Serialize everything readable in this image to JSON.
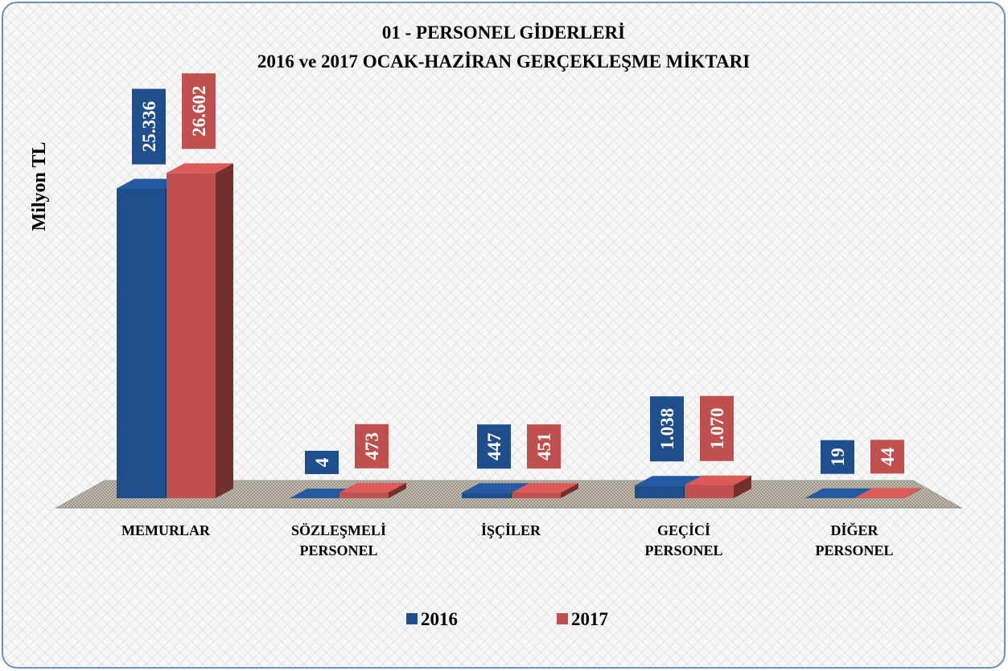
{
  "chart_data": {
    "type": "bar3d",
    "title": "01 - PERSONEL GİDERLERİ",
    "subtitle": "2016 ve 2017 OCAK-HAZİRAN GERÇEKLEŞME MİKTARI",
    "ylabel": "Milyon TL",
    "categories": [
      "MEMURLAR",
      "SÖZLEŞMELİ PERSONEL",
      "İŞÇİLER",
      "GEÇİCİ PERSONEL",
      "DİĞER PERSONEL"
    ],
    "series": [
      {
        "name": "2016",
        "color": "#1f4e8c",
        "values": [
          25336,
          4,
          447,
          1038,
          19
        ],
        "value_labels": [
          "25.336",
          "4",
          "447",
          "1.038",
          "19"
        ]
      },
      {
        "name": "2017",
        "color": "#c0504d",
        "values": [
          26602,
          473,
          451,
          1070,
          44
        ],
        "value_labels": [
          "26.602",
          "473",
          "451",
          "1.070",
          "44"
        ]
      }
    ],
    "ylim": [
      0,
      28000
    ],
    "legend": "bottom"
  }
}
